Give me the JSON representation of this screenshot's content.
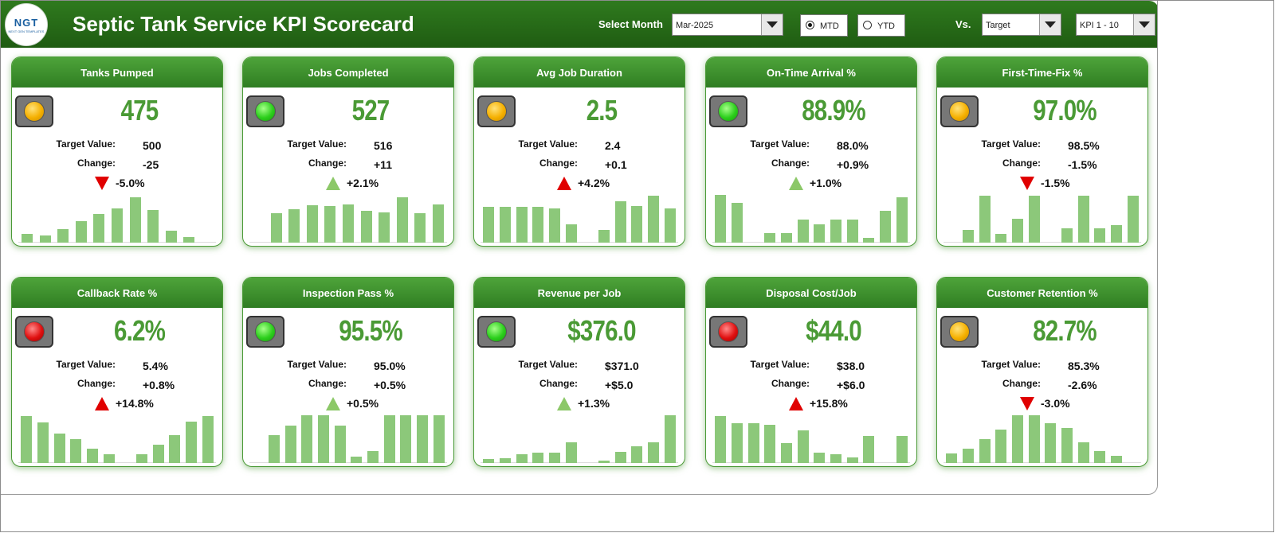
{
  "header": {
    "title": "Septic Tank Service KPI Scorecard",
    "logo_text": "NGT",
    "logo_subtext": "NEXT GEN TEMPLATES",
    "select_month_label": "Select Month",
    "month_value": "Mar-2025",
    "mtd_label": "MTD",
    "ytd_label": "YTD",
    "mtd_selected": true,
    "vs_label": "Vs.",
    "vs_value": "Target",
    "kpi_range_value": "KPI 1 - 10"
  },
  "colors": {
    "header_green": "#2f7a1e",
    "card_head_green": "#4ea43a",
    "value_green": "#4a9a35",
    "bar_green": "#8cc87a",
    "arrow_red": "#e00000",
    "arrow_green": "#8cc868"
  },
  "labels": {
    "target": "Target Value:",
    "change": "Change:"
  },
  "cards": [
    {
      "title": "Tanks Pumped",
      "value": "475",
      "target": "500",
      "change": "-25",
      "pct": "-5.0%",
      "arrow": "down",
      "light": "yellow",
      "bars": [
        0.18,
        0.15,
        0.28,
        0.45,
        0.6,
        0.72,
        0.95,
        0.68,
        0.25,
        0.12,
        0.0
      ]
    },
    {
      "title": "Jobs Completed",
      "value": "527",
      "target": "516",
      "change": "+11",
      "pct": "+2.1%",
      "arrow": "up-green",
      "light": "green",
      "bars": [
        0.0,
        0.62,
        0.7,
        0.78,
        0.76,
        0.8,
        0.66,
        0.64,
        0.95,
        0.62,
        0.8
      ]
    },
    {
      "title": "Avg Job Duration",
      "value": "2.5",
      "target": "2.4",
      "change": "+0.1",
      "pct": "+4.2%",
      "arrow": "up-red",
      "light": "yellow",
      "bars": [
        0.75,
        0.75,
        0.75,
        0.75,
        0.72,
        0.38,
        0.0,
        0.26,
        0.86,
        0.76,
        0.98,
        0.72
      ]
    },
    {
      "title": "On-Time Arrival %",
      "value": "88.9%",
      "target": "88.0%",
      "change": "+0.9%",
      "pct": "+1.0%",
      "arrow": "up-green",
      "light": "green",
      "bars": [
        1.0,
        0.83,
        0.0,
        0.2,
        0.2,
        0.49,
        0.39,
        0.49,
        0.49,
        0.1,
        0.66,
        0.95
      ]
    },
    {
      "title": "First-Time-Fix %",
      "value": "97.0%",
      "target": "98.5%",
      "change": "-1.5%",
      "pct": "-1.5%",
      "arrow": "down",
      "light": "yellow",
      "bars": [
        0.0,
        0.26,
        0.98,
        0.19,
        0.5,
        0.98,
        0.0,
        0.3,
        0.98,
        0.3,
        0.36,
        0.98
      ]
    },
    {
      "title": "Callback Rate %",
      "value": "6.2%",
      "target": "5.4%",
      "change": "+0.8%",
      "pct": "+14.8%",
      "arrow": "up-red",
      "light": "red",
      "bars": [
        0.98,
        0.85,
        0.61,
        0.5,
        0.3,
        0.18,
        0.0,
        0.18,
        0.38,
        0.59,
        0.87,
        0.98
      ]
    },
    {
      "title": "Inspection Pass %",
      "value": "95.5%",
      "target": "95.0%",
      "change": "+0.5%",
      "pct": "+0.5%",
      "arrow": "up-green",
      "light": "green",
      "bars": [
        0.0,
        0.59,
        0.79,
        1.0,
        1.0,
        0.79,
        0.14,
        0.25,
        1.0,
        1.0,
        1.0,
        1.0
      ]
    },
    {
      "title": "Revenue per Job",
      "value": "$376.0",
      "target": "$371.0",
      "change": "+$5.0",
      "pct": "+1.3%",
      "arrow": "up-green",
      "light": "green",
      "bars": [
        0.08,
        0.1,
        0.18,
        0.21,
        0.21,
        0.43,
        0.0,
        0.05,
        0.23,
        0.35,
        0.43,
        1.0
      ]
    },
    {
      "title": "Disposal Cost/Job",
      "value": "$44.0",
      "target": "$38.0",
      "change": "+$6.0",
      "pct": "+15.8%",
      "arrow": "up-red",
      "light": "red",
      "bars": [
        0.98,
        0.84,
        0.83,
        0.8,
        0.42,
        0.69,
        0.22,
        0.19,
        0.12,
        0.56,
        0.0,
        0.56
      ]
    },
    {
      "title": "Customer Retention %",
      "value": "82.7%",
      "target": "85.3%",
      "change": "-2.6%",
      "pct": "-3.0%",
      "arrow": "down",
      "light": "yellow",
      "bars": [
        0.2,
        0.3,
        0.5,
        0.7,
        1.0,
        1.0,
        0.83,
        0.74,
        0.43,
        0.25,
        0.15,
        0.0
      ]
    }
  ]
}
